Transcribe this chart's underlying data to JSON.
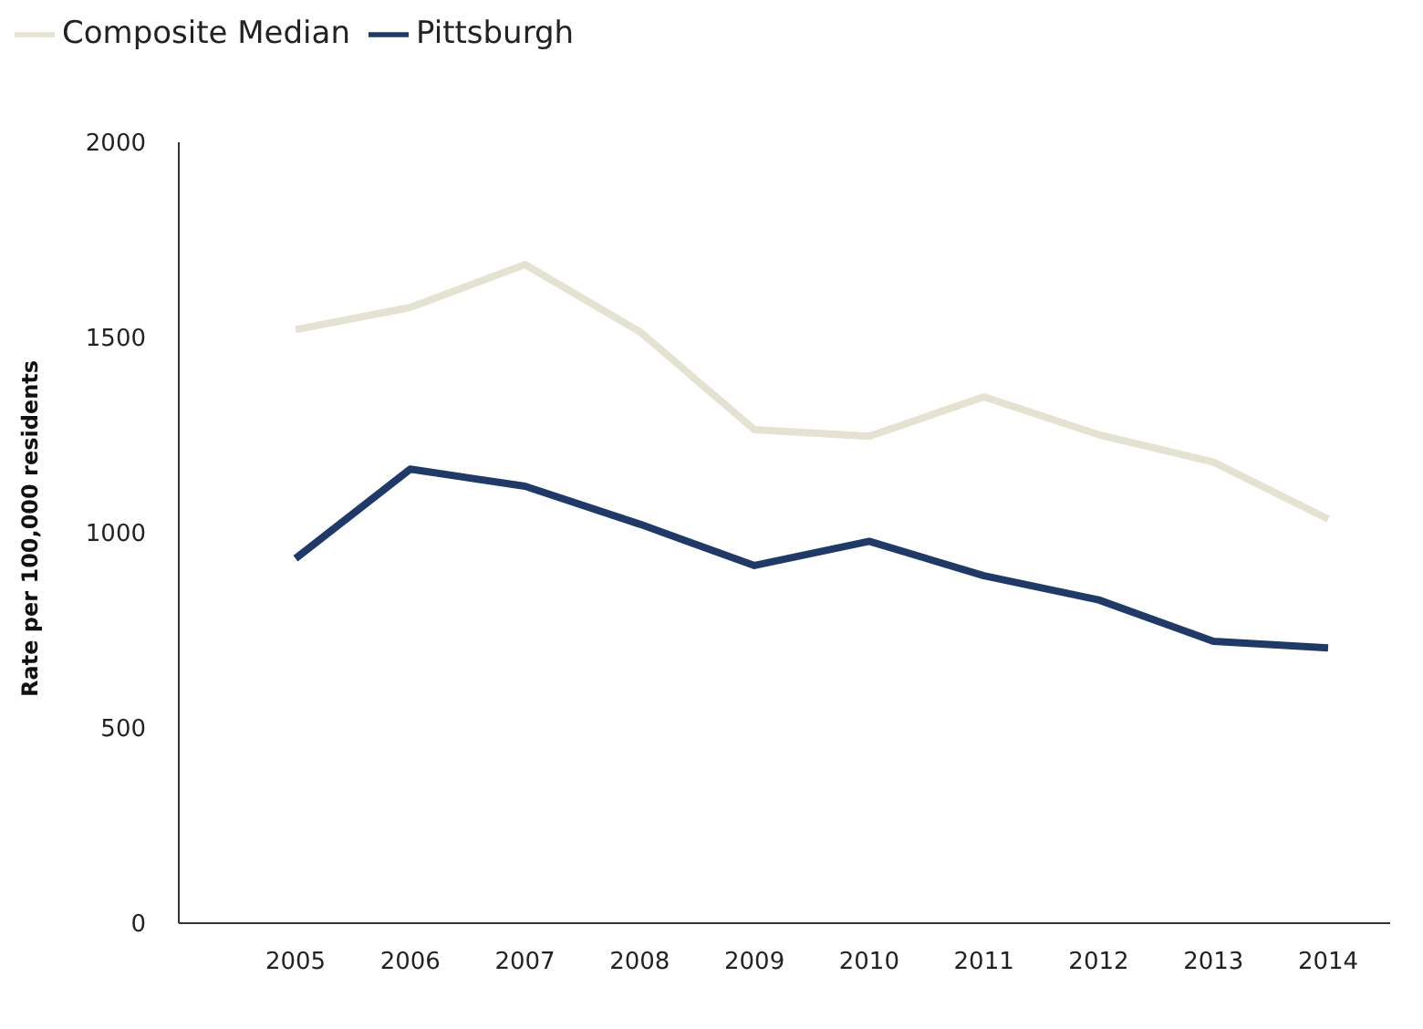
{
  "chart_data": {
    "type": "line",
    "ylabel": "Rate per 100,000 residents",
    "categories": [
      "2005",
      "2006",
      "2007",
      "2008",
      "2009",
      "2010",
      "2011",
      "2012",
      "2013",
      "2014"
    ],
    "series": [
      {
        "name": "Composite Median",
        "color": "#e4e2d0",
        "values": [
          1520,
          1577,
          1687,
          1515,
          1264,
          1247,
          1348,
          1251,
          1181,
          1035
        ]
      },
      {
        "name": "Pittsburgh",
        "color": "#1f3a68",
        "values": [
          934,
          1163,
          1119,
          1022,
          916,
          978,
          890,
          828,
          722,
          705
        ]
      }
    ],
    "ylim": [
      0,
      2000
    ],
    "yticks": [
      0,
      500,
      1000,
      1500,
      2000
    ],
    "legend": "top left",
    "marker": "none",
    "line_style": "solid"
  }
}
